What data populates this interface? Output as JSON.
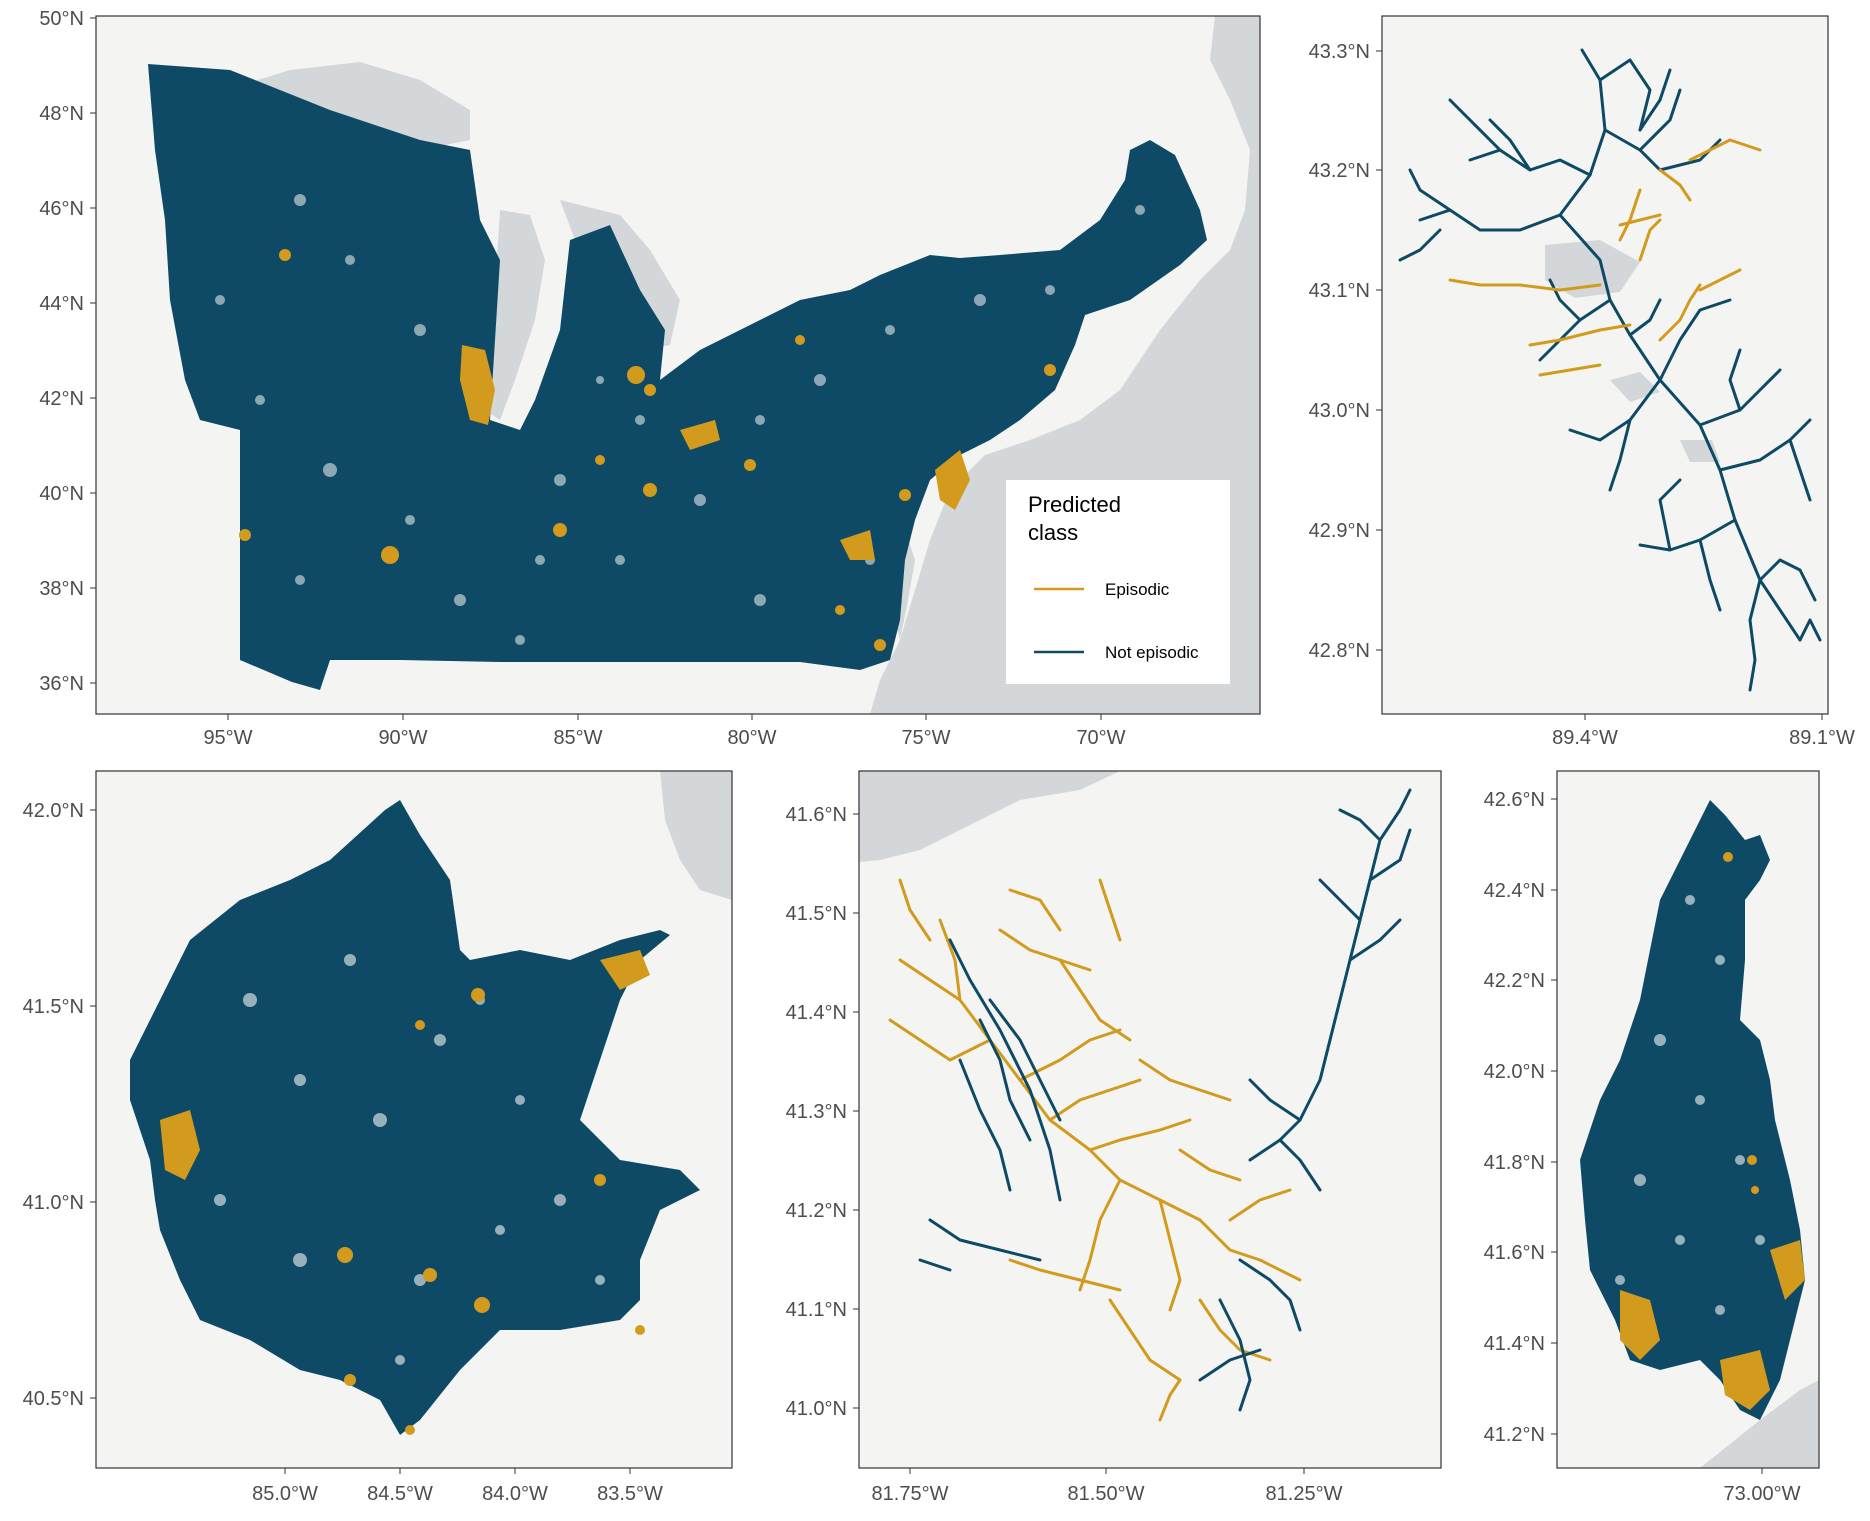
{
  "colors": {
    "episodic": "#D29B1E",
    "not_episodic": "#0E4A66",
    "land": "#F4F5F3",
    "water": "#D3D7DA",
    "frame": "#333333"
  },
  "legend": {
    "title_line1": "Predicted",
    "title_line2": "class",
    "items": [
      {
        "label": "Episodic",
        "color_key": "episodic"
      },
      {
        "label": "Not episodic",
        "color_key": "not_episodic"
      }
    ]
  },
  "panels": [
    {
      "id": "northeast",
      "y_ticks": [
        "50°N",
        "48°N",
        "46°N",
        "44°N",
        "42°N",
        "40°N",
        "38°N",
        "36°N"
      ],
      "x_ticks": [
        "95°W",
        "90°W",
        "85°W",
        "80°W",
        "75°W",
        "70°W"
      ]
    },
    {
      "id": "madison",
      "y_ticks": [
        "43.3°N",
        "43.2°N",
        "43.1°N",
        "43.0°N",
        "42.9°N",
        "42.8°N"
      ],
      "x_ticks": [
        "89.4°W",
        "89.1°W"
      ]
    },
    {
      "id": "maumee",
      "y_ticks": [
        "42.0°N",
        "41.5°N",
        "41.0°N",
        "40.5°N"
      ],
      "x_ticks": [
        "85.0°W",
        "84.5°W",
        "84.0°W",
        "83.5°W"
      ]
    },
    {
      "id": "cuyahoga",
      "y_ticks": [
        "41.6°N",
        "41.5°N",
        "41.4°N",
        "41.3°N",
        "41.2°N",
        "41.1°N",
        "41.0°N"
      ],
      "x_ticks": [
        "81.75°W",
        "81.50°W",
        "81.25°W"
      ]
    },
    {
      "id": "housatonic",
      "y_ticks": [
        "42.6°N",
        "42.4°N",
        "42.2°N",
        "42.0°N",
        "41.8°N",
        "41.6°N",
        "41.4°N",
        "41.2°N"
      ],
      "x_ticks": [
        "73.00°W"
      ]
    }
  ]
}
